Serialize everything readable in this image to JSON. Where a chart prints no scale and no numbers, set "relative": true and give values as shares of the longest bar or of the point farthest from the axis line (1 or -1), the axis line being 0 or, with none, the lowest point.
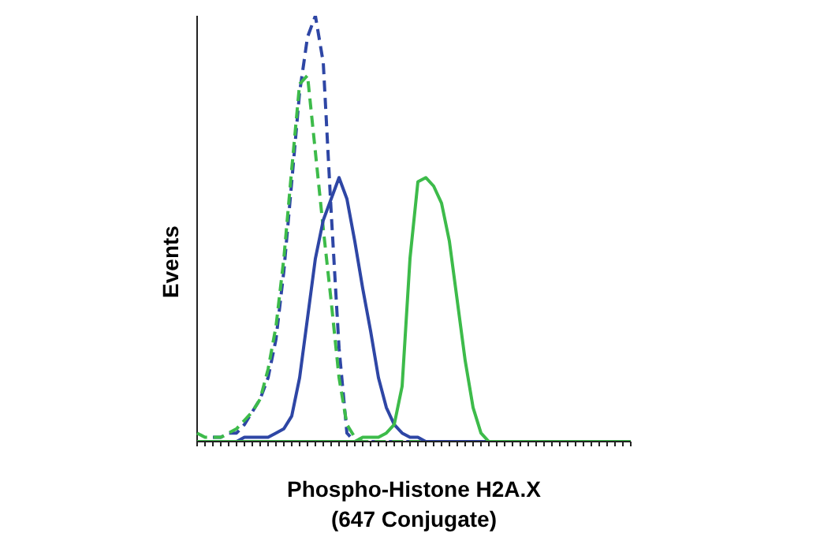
{
  "chart_data": {
    "type": "line",
    "relative": true,
    "xlabel": "Phospho-Histone H2A.X\n(647 Conjugate)",
    "ylabel": "Events",
    "marker": "none",
    "categories": [
      null,
      null,
      null,
      null,
      null,
      null,
      null,
      null,
      null,
      null,
      null,
      null,
      null,
      null,
      null,
      null,
      null,
      null,
      null,
      null,
      null,
      null,
      null,
      null,
      null,
      null,
      null,
      null,
      null,
      null,
      null,
      null,
      null,
      null,
      null,
      null,
      null,
      null,
      null,
      null,
      null,
      null,
      null,
      null,
      null,
      null,
      null,
      null,
      null,
      null,
      null,
      null,
      null,
      null,
      null,
      null
    ],
    "series": [
      {
        "color": "#2e46a5",
        "line_style": "dashed",
        "values": [
          null,
          null,
          0.01,
          0.01,
          0.02,
          0.02,
          0.04,
          0.07,
          0.1,
          0.15,
          0.24,
          0.4,
          0.61,
          0.82,
          0.95,
          1.0,
          0.89,
          0.54,
          0.22,
          0.02,
          0,
          0,
          0,
          0,
          0,
          0,
          0,
          0,
          0,
          0,
          0,
          0,
          0,
          0,
          0,
          0,
          0,
          0,
          0,
          0,
          null,
          null,
          null,
          null,
          null,
          null,
          null,
          null,
          null,
          null,
          null,
          null,
          null,
          null,
          null,
          null
        ]
      },
      {
        "color": "#3dbb4a",
        "line_style": "dashed",
        "values": [
          0.02,
          0.01,
          0.01,
          0.01,
          0.02,
          0.03,
          0.05,
          0.07,
          0.1,
          0.17,
          0.27,
          0.43,
          0.64,
          0.84,
          0.86,
          0.68,
          0.5,
          0.33,
          0.15,
          0.04,
          0.01,
          0,
          0,
          0,
          0,
          0,
          0,
          0,
          0,
          0,
          0,
          0,
          0,
          0,
          0,
          0,
          0,
          0,
          0,
          0,
          0,
          0,
          0,
          0,
          0,
          0,
          0,
          0,
          0,
          0,
          0,
          0,
          0,
          0,
          0,
          0
        ]
      },
      {
        "color": "#2e46a5",
        "line_style": "solid",
        "values": [
          null,
          null,
          null,
          0,
          0,
          0,
          0.01,
          0.01,
          0.01,
          0.01,
          0.02,
          0.03,
          0.06,
          0.15,
          0.29,
          0.43,
          0.52,
          0.57,
          0.62,
          0.57,
          0.47,
          0.36,
          0.26,
          0.15,
          0.08,
          0.04,
          0.02,
          0.01,
          0.01,
          0,
          0,
          0,
          0,
          0,
          0,
          0,
          0,
          0,
          0,
          null,
          null,
          null,
          null,
          null,
          null,
          null,
          null,
          null,
          null,
          null,
          null,
          null,
          null,
          null,
          null,
          null
        ]
      },
      {
        "color": "#3dbb4a",
        "line_style": "solid",
        "values": [
          0,
          0,
          0,
          0,
          0,
          0,
          0,
          0,
          0,
          0,
          0,
          0,
          0,
          0,
          0,
          0,
          0,
          0,
          0,
          0,
          0,
          0.01,
          0.01,
          0.01,
          0.02,
          0.04,
          0.13,
          0.43,
          0.61,
          0.62,
          0.6,
          0.56,
          0.47,
          0.33,
          0.19,
          0.08,
          0.02,
          0,
          0,
          0,
          0,
          0,
          0,
          0,
          0,
          0,
          0,
          0,
          0,
          0,
          0,
          0,
          0,
          0,
          0,
          0
        ]
      }
    ]
  }
}
